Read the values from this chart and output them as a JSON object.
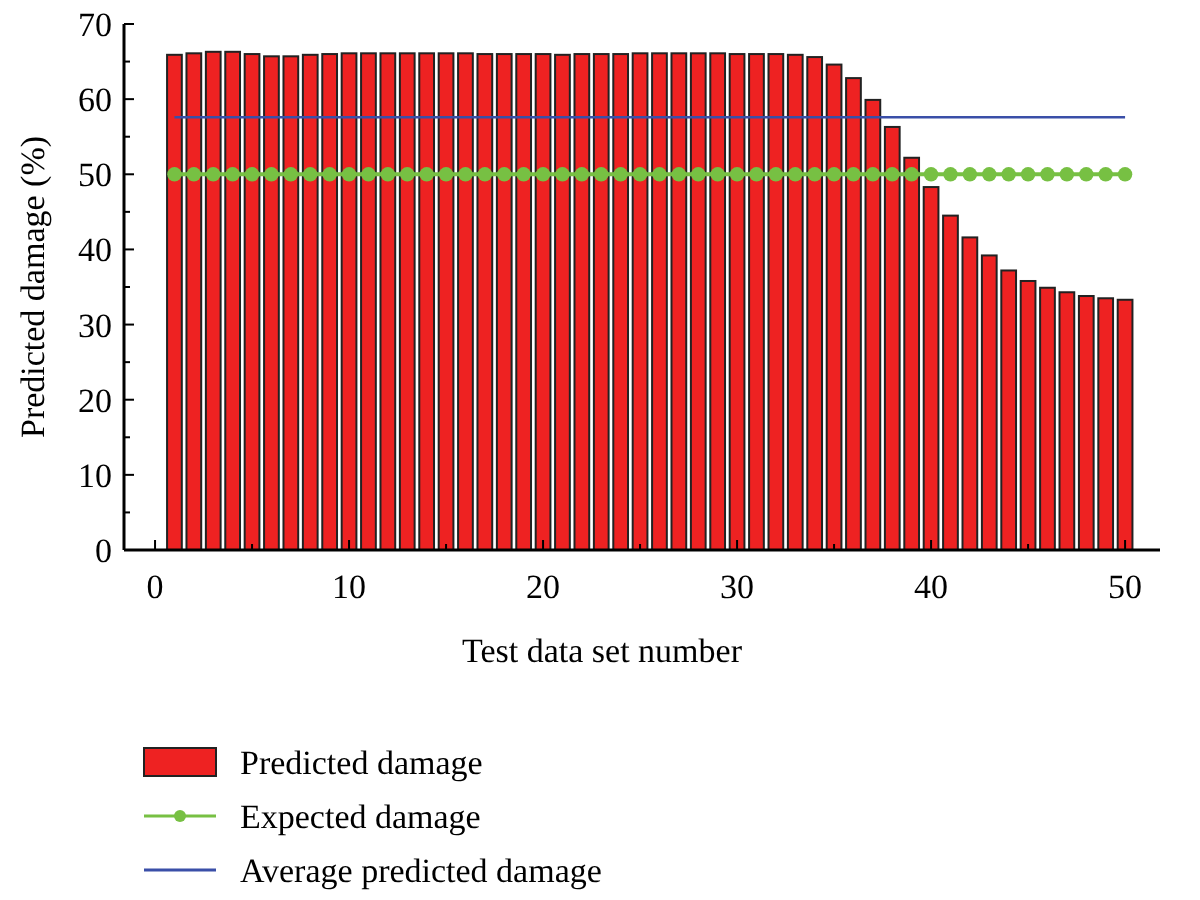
{
  "chart_data": {
    "type": "bar",
    "xlabel": "Test data set number",
    "ylabel": "Predicted damage (%)",
    "xlim": [
      -1.6,
      51.8
    ],
    "ylim": [
      0,
      70
    ],
    "xticks": [
      0,
      {
        "value": 5,
        "label": null
      },
      10,
      {
        "value": 15,
        "label": null
      },
      20,
      {
        "value": 25,
        "label": null
      },
      30,
      {
        "value": 35,
        "label": null
      },
      40,
      {
        "value": 45,
        "label": null
      },
      50
    ],
    "yticks": [
      0,
      {
        "value": 5,
        "label": null
      },
      10,
      {
        "value": 15,
        "label": null
      },
      20,
      {
        "value": 25,
        "label": null
      },
      30,
      {
        "value": 35,
        "label": null
      },
      40,
      {
        "value": 45,
        "label": null
      },
      50,
      {
        "value": 55,
        "label": null
      },
      60,
      {
        "value": 65,
        "label": null
      },
      70
    ],
    "grid": false,
    "legend": "bottom",
    "x": [
      1,
      2,
      3,
      4,
      5,
      6,
      7,
      8,
      9,
      10,
      11,
      12,
      13,
      14,
      15,
      16,
      17,
      18,
      19,
      20,
      21,
      22,
      23,
      24,
      25,
      26,
      27,
      28,
      29,
      30,
      31,
      32,
      33,
      34,
      35,
      36,
      37,
      38,
      39,
      40,
      41,
      42,
      43,
      44,
      45,
      46,
      47,
      48,
      49,
      50
    ],
    "series": [
      {
        "name": "Predicted damage",
        "color": "#ee2222",
        "values": [
          65.9,
          66.1,
          66.3,
          66.3,
          66.0,
          65.7,
          65.7,
          65.9,
          66.0,
          66.1,
          66.1,
          66.1,
          66.1,
          66.1,
          66.1,
          66.1,
          66.0,
          66.0,
          66.0,
          66.0,
          65.9,
          66.0,
          66.0,
          66.0,
          66.1,
          66.1,
          66.1,
          66.1,
          66.1,
          66.0,
          66.0,
          66.0,
          65.9,
          65.6,
          64.6,
          62.8,
          59.9,
          56.3,
          52.2,
          48.3,
          44.5,
          41.6,
          39.2,
          37.2,
          35.8,
          34.9,
          34.3,
          33.8,
          33.5,
          33.3
        ]
      },
      {
        "name": "Expected damage",
        "type": "line",
        "color": "#77c043",
        "marker": "circle",
        "values": [
          50,
          50,
          50,
          50,
          50,
          50,
          50,
          50,
          50,
          50,
          50,
          50,
          50,
          50,
          50,
          50,
          50,
          50,
          50,
          50,
          50,
          50,
          50,
          50,
          50,
          50,
          50,
          50,
          50,
          50,
          50,
          50,
          50,
          50,
          50,
          50,
          50,
          50,
          50,
          50,
          50,
          50,
          50,
          50,
          50,
          50,
          50,
          50,
          50,
          50
        ]
      },
      {
        "name": "Average predicted damage",
        "type": "line",
        "color": "#3a4fa8",
        "marker": "none",
        "x": [
          1,
          50
        ],
        "values": [
          57.6,
          57.6
        ]
      }
    ]
  }
}
